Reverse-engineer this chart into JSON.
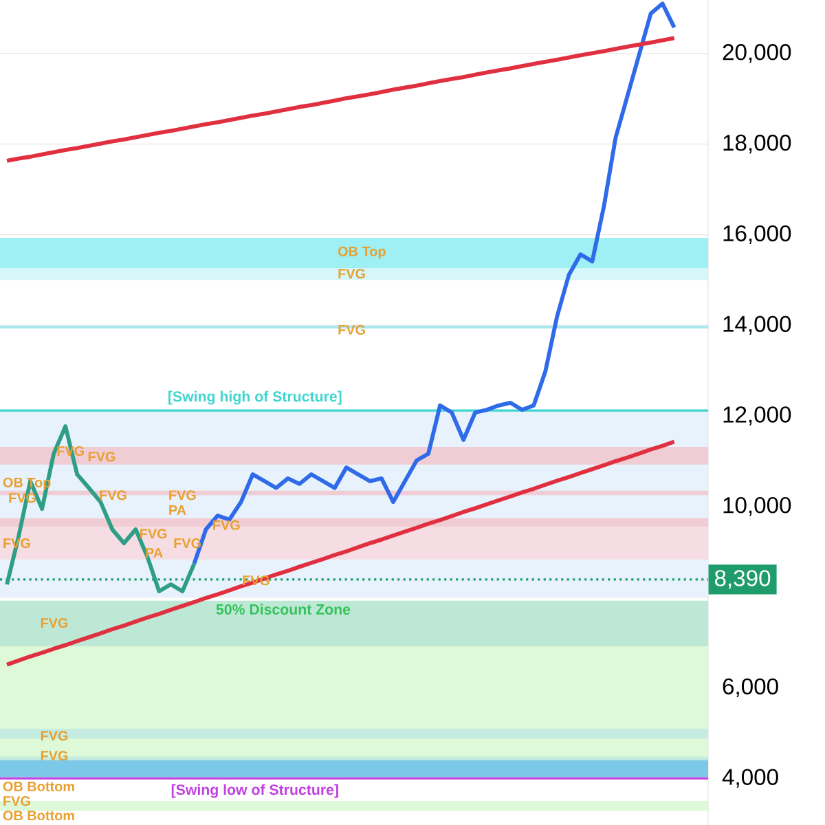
{
  "chart_data": {
    "type": "line",
    "categories": [
      null,
      null,
      null,
      null,
      null,
      null,
      null,
      null,
      null,
      null,
      null,
      null,
      null,
      null,
      null,
      null,
      null,
      null,
      null,
      null,
      null,
      null,
      null,
      null,
      null,
      null,
      null,
      null,
      null,
      null,
      null,
      null,
      null,
      null,
      null,
      null,
      null,
      null,
      null,
      null,
      null,
      null,
      null,
      null,
      null,
      null,
      null,
      null,
      null,
      null,
      null,
      null,
      null,
      null,
      null,
      null,
      null,
      null
    ],
    "ylim": [
      2970,
      21180
    ],
    "yticks": [
      {
        "value": 4000,
        "label": "4,000"
      },
      {
        "value": 6000,
        "label": "6,000"
      },
      {
        "value": 8000,
        "label": null
      },
      {
        "value": 10000,
        "label": "10,000"
      },
      {
        "value": 12000,
        "label": "12,000"
      },
      {
        "value": 14000,
        "label": "14,000"
      },
      {
        "value": 16000,
        "label": "16,000"
      },
      {
        "value": 18000,
        "label": "18,000"
      },
      {
        "value": 20000,
        "label": "20,000"
      }
    ],
    "tick_labels": "y",
    "grid": "y",
    "marker": "none",
    "line_style": "solid",
    "series": [
      {
        "color": "#2e9e86",
        "values": [
          8280,
          9340,
          10560,
          9950,
          11165,
          11770,
          10710,
          10410,
          10100,
          9495,
          9190,
          9495,
          8890,
          8130,
          8280,
          8130,
          8740,
          null,
          null,
          null,
          null,
          null,
          null,
          null,
          null,
          null,
          null,
          null,
          null,
          null,
          null,
          null,
          null,
          null,
          null,
          null,
          null,
          null,
          null,
          null,
          null,
          null,
          null,
          null,
          null,
          null,
          null,
          null,
          null,
          null,
          null,
          null,
          null,
          null,
          null,
          null,
          null,
          null
        ]
      },
      {
        "color": "#2f6be8",
        "values": [
          null,
          null,
          null,
          null,
          null,
          null,
          null,
          null,
          null,
          null,
          null,
          null,
          null,
          null,
          null,
          null,
          8740,
          9495,
          9800,
          9710,
          10100,
          10710,
          10560,
          10410,
          10620,
          10500,
          10710,
          10560,
          10410,
          10860,
          10710,
          10560,
          10620,
          10100,
          10560,
          11015,
          11165,
          12230,
          12075,
          11470,
          12075,
          12135,
          12230,
          12290,
          12135,
          12230,
          12985,
          14200,
          15110,
          15565,
          15410,
          16630,
          18145,
          19055,
          19970,
          20880,
          21100,
          20575
        ]
      },
      {
        "color": "#e03040",
        "values": [
          17630,
          17680,
          17720,
          17770,
          17820,
          17870,
          17910,
          17960,
          18010,
          18060,
          18100,
          18150,
          18200,
          18250,
          18290,
          18340,
          18390,
          18440,
          18480,
          18530,
          18580,
          18630,
          18670,
          18720,
          18770,
          18820,
          18860,
          18910,
          18960,
          19010,
          19055,
          19100,
          19150,
          19200,
          19245,
          19290,
          19340,
          19390,
          19435,
          19480,
          19530,
          19580,
          19625,
          19670,
          19720,
          19770,
          19815,
          19860,
          19910,
          19960,
          20005,
          20050,
          20100,
          20150,
          20195,
          20240,
          20290,
          20340
        ]
      },
      {
        "color": "#e03040",
        "values": [
          6510,
          6600,
          6690,
          6770,
          6860,
          6940,
          7030,
          7115,
          7200,
          7290,
          7370,
          7460,
          7550,
          7630,
          7720,
          7805,
          7890,
          7980,
          8060,
          8150,
          8240,
          8320,
          8410,
          8500,
          8580,
          8670,
          8755,
          8840,
          8930,
          9010,
          9100,
          9190,
          9270,
          9360,
          9445,
          9530,
          9620,
          9700,
          9790,
          9880,
          9960,
          10050,
          10135,
          10220,
          10310,
          10390,
          10480,
          10570,
          10650,
          10740,
          10825,
          10910,
          11000,
          11080,
          11170,
          11260,
          11340,
          11430
        ]
      }
    ],
    "bands": [
      {
        "axis": "y",
        "from": 8000,
        "to": 12120,
        "color": "#e8f2fc"
      },
      {
        "axis": "y",
        "from": 15260,
        "to": 15930,
        "color": "#9ef0f5"
      },
      {
        "axis": "y",
        "from": 15000,
        "to": 15260,
        "color": "#d6f7fa"
      },
      {
        "axis": "y",
        "from": 13930,
        "to": 13990,
        "color": "#a8e8ee"
      },
      {
        "axis": "y",
        "from": 10925,
        "to": 11315,
        "color": "#f0ccd4"
      },
      {
        "axis": "y",
        "from": 10250,
        "to": 10350,
        "color": "#f0ccd4"
      },
      {
        "axis": "y",
        "from": 9555,
        "to": 9740,
        "color": "#f0ccd4"
      },
      {
        "axis": "y",
        "from": 8830,
        "to": 9555,
        "color": "#f5dde3"
      },
      {
        "axis": "y",
        "from": 6915,
        "to": 7920,
        "color": "#bde8d6",
        "label": "50% Discount Zone"
      },
      {
        "axis": "y",
        "from": 4180,
        "to": 6915,
        "color": "#ddf9d8"
      },
      {
        "axis": "y",
        "from": 4880,
        "to": 5095,
        "color": "#c4ece0"
      },
      {
        "axis": "y",
        "from": 4400,
        "to": 4480,
        "color": "#c4ece0"
      },
      {
        "axis": "y",
        "from": 4030,
        "to": 4400,
        "color": "#7cc8e8"
      },
      {
        "axis": "y",
        "from": 3280,
        "to": 3500,
        "color": "#ddf9d8"
      }
    ],
    "ref_lines": [
      {
        "axis": "y",
        "value": 12120,
        "label": "[Swing high of Structure]",
        "color": "#3fd6d0",
        "line_style": "solid"
      },
      {
        "axis": "y",
        "value": 8390,
        "label": "8,390",
        "color": "#1e9c6c",
        "line_style": "dotted"
      },
      {
        "axis": "y",
        "value": 4000,
        "label": "[Swing low of Structure]",
        "color": "#c040e0",
        "line_style": "solid"
      }
    ],
    "annotations": [
      "OB Top",
      "FVG",
      "FVG",
      "FVG",
      "FVG",
      "OB Top",
      "FVG",
      "FVG",
      "FVG",
      "PA",
      "FVG",
      "FVG",
      "FVG",
      "PA",
      "FVG",
      "FVG",
      "FVG",
      "FVG",
      "FVG",
      "OB Bottom",
      "FVG",
      "OB Bottom"
    ]
  }
}
